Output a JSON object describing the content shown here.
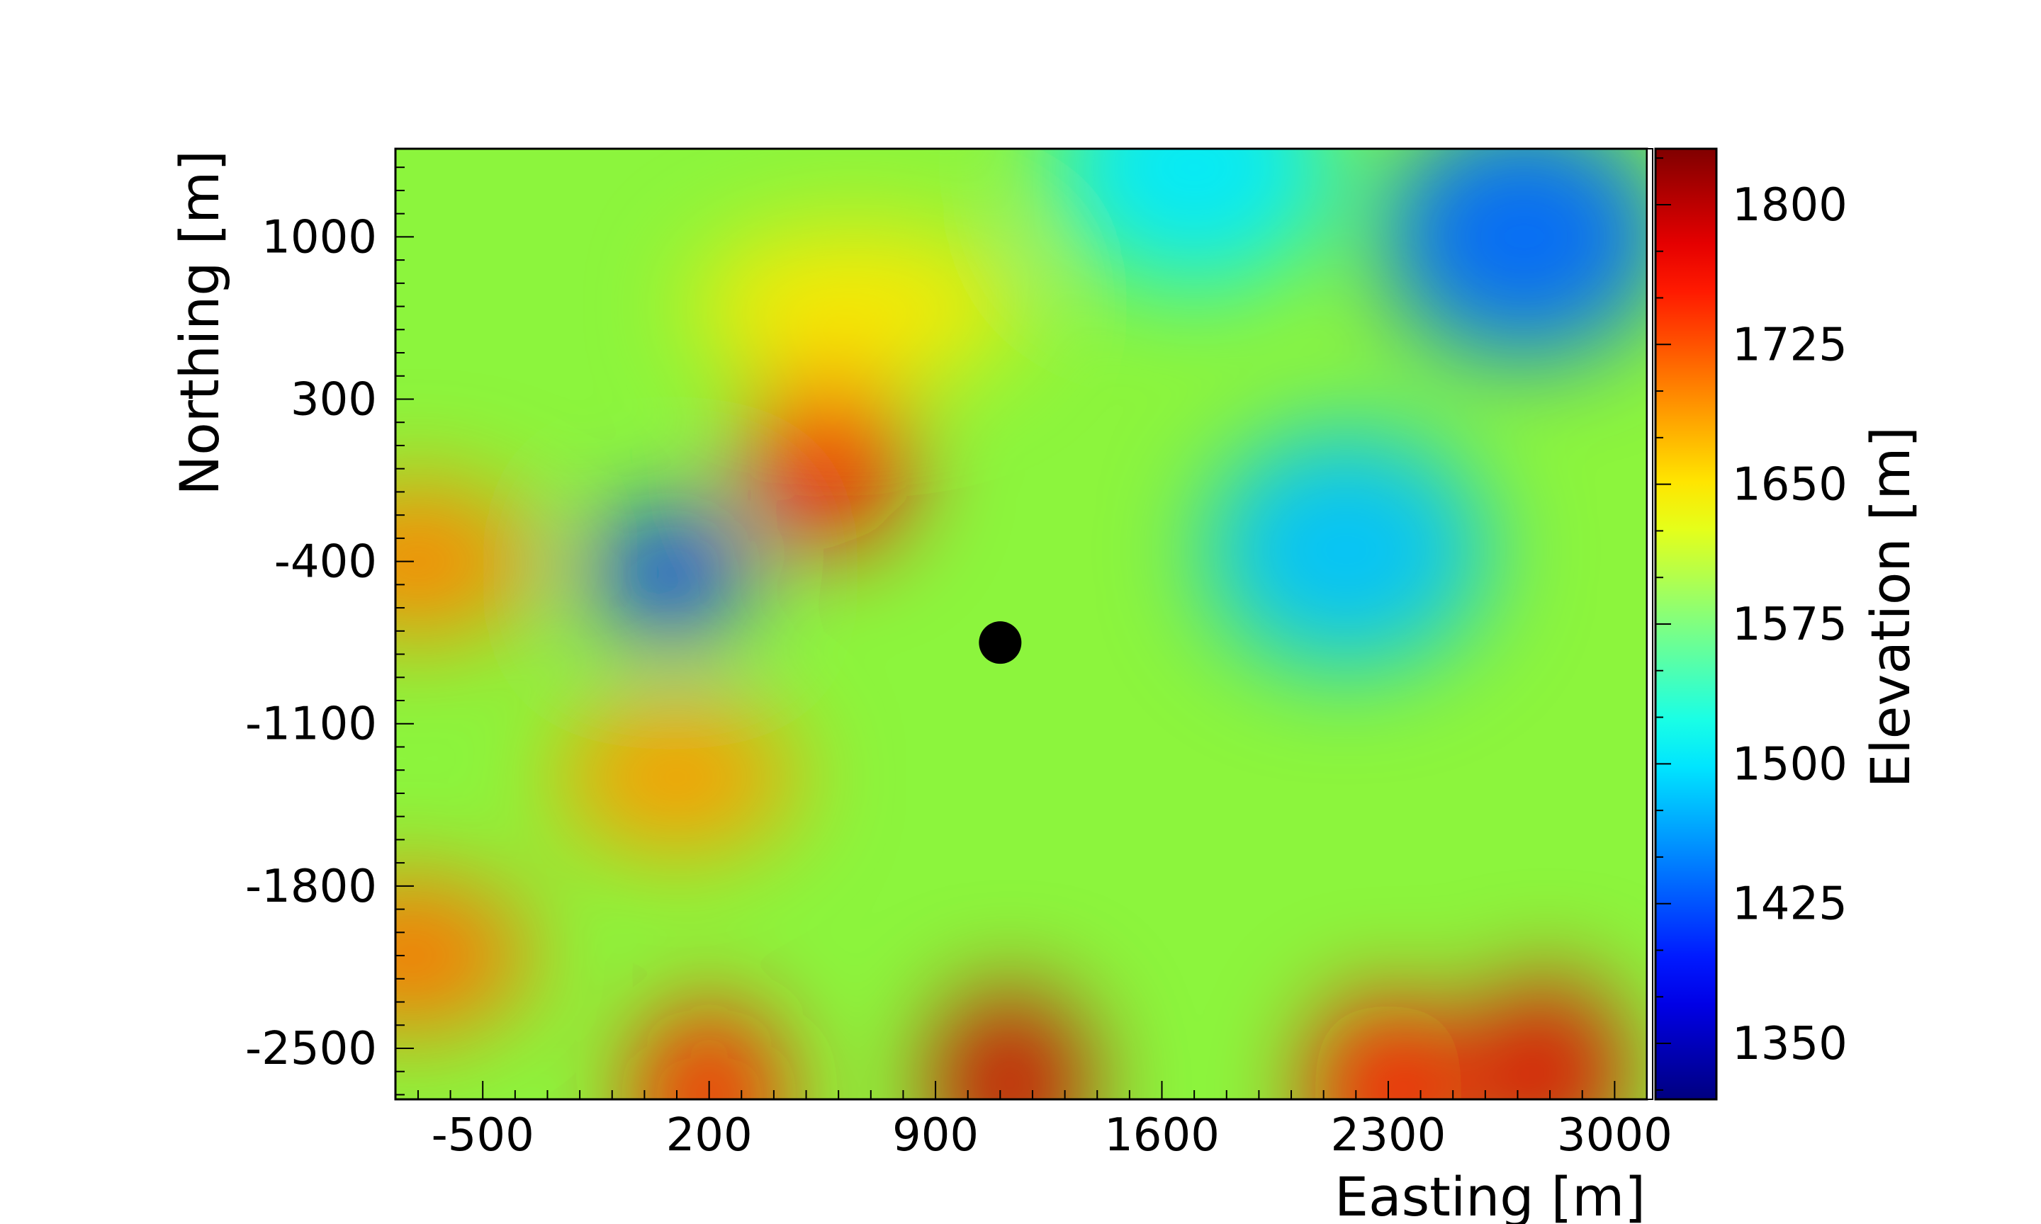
{
  "chart_data": {
    "type": "heatmap",
    "title": "",
    "xlabel": "Easting [m]",
    "ylabel": "Northing [m]",
    "colorbar_label": "Elevation [m]",
    "xlim": [
      -770,
      3100
    ],
    "ylim": [
      -2720,
      1380
    ],
    "colorbar_range": [
      1320,
      1830
    ],
    "x_ticks": [
      -500,
      200,
      900,
      1600,
      2300,
      3000
    ],
    "x_tick_labels": [
      "-500",
      "200",
      "900",
      "1600",
      "2300",
      "3000"
    ],
    "y_ticks": [
      1000,
      300,
      -400,
      -1100,
      -1800,
      -2500
    ],
    "y_tick_labels": [
      "1000",
      "300",
      "-400",
      "-1100",
      "-1800",
      "-2500"
    ],
    "colorbar_ticks": [
      1800,
      1725,
      1650,
      1575,
      1500,
      1425,
      1350
    ],
    "colorbar_tick_labels": [
      "1800",
      "1725",
      "1650",
      "1575",
      "1500",
      "1425",
      "1350"
    ],
    "colormap": "jet",
    "grid": false,
    "terrain_features": [
      {
        "kind": "peak",
        "x": 1130,
        "y": -2650,
        "elevation": 1790
      },
      {
        "kind": "peak",
        "x": 2790,
        "y": -2600,
        "elevation": 1780
      },
      {
        "kind": "peak",
        "x": 2300,
        "y": -2680,
        "elevation": 1760
      },
      {
        "kind": "peak",
        "x": 200,
        "y": -2700,
        "elevation": 1750
      },
      {
        "kind": "peak",
        "x": 570,
        "y": 50,
        "elevation": 1760
      },
      {
        "kind": "ridge",
        "x": -700,
        "y": -400,
        "elevation": 1700
      },
      {
        "kind": "ridge",
        "x": -720,
        "y": -2100,
        "elevation": 1710
      },
      {
        "kind": "ridge",
        "x": 100,
        "y": -1330,
        "elevation": 1690
      },
      {
        "kind": "plateau",
        "x": 650,
        "y": 700,
        "elevation": 1650
      },
      {
        "kind": "depression",
        "x": 80,
        "y": -450,
        "elevation": 1410
      },
      {
        "kind": "valley",
        "x": 2720,
        "y": 1000,
        "elevation": 1435
      },
      {
        "kind": "valley",
        "x": 2170,
        "y": -350,
        "elevation": 1480
      },
      {
        "kind": "valley",
        "x": 1700,
        "y": 1300,
        "elevation": 1500
      }
    ],
    "marker": {
      "x": 1100,
      "y": -750,
      "color": "#000000"
    }
  }
}
